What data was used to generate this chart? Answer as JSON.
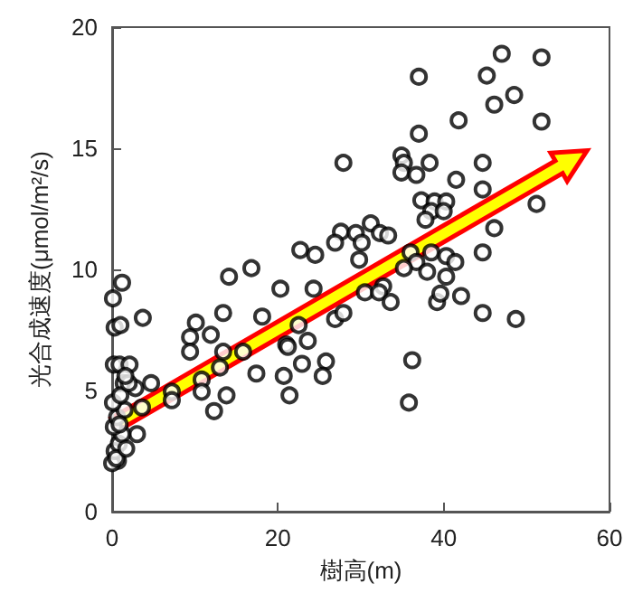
{
  "chart_data": {
    "type": "scatter",
    "xlabel": "樹高(m)",
    "ylabel": "光合成速度(μmol/m²/s)",
    "xlim": [
      0,
      60
    ],
    "xticks": [
      0,
      20,
      40,
      60
    ],
    "ylim": [
      0,
      20
    ],
    "yticks": [
      0,
      5,
      10,
      15,
      20
    ],
    "grid": false,
    "marker": "circle",
    "series": [
      {
        "color": "#000000",
        "x": [
          1.2,
          0.1,
          0.3,
          1.0,
          3.7,
          0.2,
          0.9,
          2.1,
          1.4,
          2.8,
          3.6,
          3.0,
          0.7,
          14.1,
          16.8,
          13.4,
          10.1,
          9.4,
          11.9,
          9.4,
          13.4,
          15.8,
          13.0,
          17.4,
          10.8,
          7.2,
          10.8,
          13.8,
          7.2,
          12.3,
          20.3,
          18.1,
          21.0,
          20.7,
          21.4,
          4.7,
          27.9,
          34.9,
          35.2,
          34.9,
          36.7,
          38.3,
          41.5,
          44.7,
          44.7,
          37.3,
          38.9,
          40.3,
          38.5,
          40.0,
          37.8,
          31.2,
          27.6,
          29.4,
          32.3,
          33.3,
          30.1,
          26.9,
          22.7,
          24.5,
          29.8,
          36.0,
          38.5,
          40.3,
          41.4,
          36.7,
          35.2,
          38.0,
          40.3,
          44.7,
          24.3,
          30.5,
          32.7,
          32.2,
          33.6,
          39.2,
          39.6,
          42.1,
          44.7,
          26.9,
          27.9,
          22.5,
          23.6,
          21.2,
          22.9,
          25.8,
          25.4,
          36.2,
          35.8,
          47.0,
          51.8,
          45.2,
          48.5,
          46.1,
          37.0,
          41.8,
          51.8,
          37.0,
          51.2,
          46.1,
          48.7,
          0.0,
          0.3,
          0.8,
          1.2,
          0.2,
          0.6,
          1.5,
          0.1,
          1.0,
          0.5,
          1.7,
          0.9,
          2.0,
          1.6
        ],
        "values": [
          9.45,
          8.8,
          7.6,
          7.7,
          8.0,
          6.07,
          6.07,
          6.07,
          5.3,
          5.1,
          4.3,
          3.2,
          2.1,
          9.7,
          10.05,
          8.2,
          7.8,
          7.2,
          7.3,
          6.6,
          6.6,
          6.6,
          5.95,
          5.7,
          5.45,
          4.95,
          4.95,
          4.8,
          4.6,
          4.15,
          9.2,
          8.05,
          6.9,
          5.6,
          4.8,
          5.3,
          14.4,
          14.7,
          14.4,
          14.0,
          13.9,
          14.4,
          13.7,
          14.4,
          13.3,
          12.85,
          12.8,
          12.8,
          12.4,
          12.4,
          12.05,
          11.9,
          11.55,
          11.5,
          11.5,
          11.4,
          11.1,
          11.1,
          10.8,
          10.6,
          10.4,
          10.7,
          10.7,
          10.55,
          10.3,
          10.3,
          10.05,
          9.9,
          9.7,
          10.7,
          9.2,
          9.05,
          9.3,
          9.05,
          8.65,
          8.65,
          9.0,
          8.9,
          8.2,
          7.95,
          8.2,
          7.7,
          7.05,
          6.8,
          6.1,
          6.2,
          5.6,
          6.25,
          4.5,
          18.9,
          18.75,
          18.0,
          17.2,
          16.8,
          17.95,
          16.15,
          16.1,
          15.6,
          12.7,
          11.7,
          7.95,
          2.0,
          2.5,
          2.8,
          3.2,
          3.5,
          3.9,
          4.2,
          4.5,
          4.8,
          2.2,
          2.6,
          3.6,
          5.3,
          5.6
        ]
      }
    ]
  }
}
